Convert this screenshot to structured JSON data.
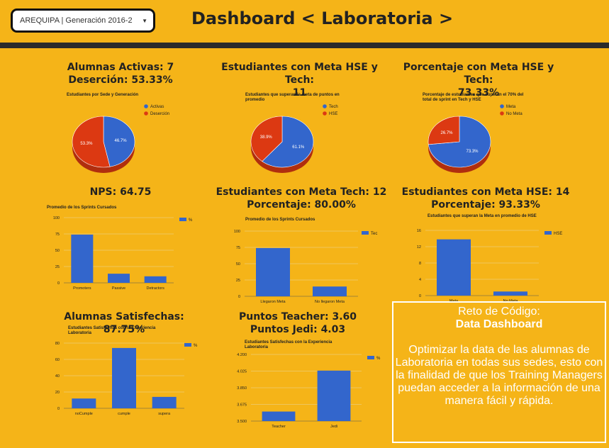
{
  "header": {
    "select_value": "AREQUIPA | Generación 2016-2",
    "title": "Dashboard < Laboratoria >"
  },
  "panels": {
    "p1": {
      "title1": "Alumnas Activas: 7",
      "title2": "Deserción: 53.33%",
      "subtitle": "Estudiantes por Sede y Generación",
      "legend": [
        "Activas",
        "Deserción"
      ],
      "labels": [
        "46.7%",
        "53.3%"
      ]
    },
    "p2": {
      "title1": "Estudiantes con Meta HSE y Tech:",
      "title2": "11",
      "subtitle": "Estudiantes que superan la meta de puntos en promedio",
      "legend": [
        "Tech",
        "HSE"
      ],
      "labels": [
        "61.1%",
        "38.9%"
      ]
    },
    "p3": {
      "title1": "Porcentaje con Meta HSE y Tech:",
      "title2": "73.33%",
      "subtitle": "Porcentaje de estudiantes que superan el 70% del total de sprint en Tech y HSE",
      "legend": [
        "Meta",
        "No Meta"
      ],
      "labels": [
        "73.3%",
        "26.7%"
      ]
    },
    "p4": {
      "title1": "NPS: 64.75",
      "subtitle": "Promedio de los Sprints Cursados",
      "legend": "%"
    },
    "p5": {
      "title1": "Estudiantes con Meta Tech: 12",
      "title2": "Porcentaje: 80.00%",
      "subtitle": "Promedio de los Sprints Cursados",
      "legend": "Tec"
    },
    "p6": {
      "title1": "Estudiantes con Meta HSE: 14",
      "title2": "Porcentaje: 93.33%",
      "subtitle": "Estudiantes que superan la Meta en promedio de HSE",
      "legend": "HSE"
    },
    "p7": {
      "title1": "Alumnas Satisfechas: 87.75%",
      "subtitle": "Estudiantes Satisfechas con la Experiencia Laboratoria",
      "legend": "%"
    },
    "p8": {
      "title1": "Puntos Teacher: 3.60",
      "title2": "Puntos Jedi: 4.03",
      "subtitle": "Estudiantes Satisfechas con la Experiencia Laboratoria",
      "legend": "%"
    }
  },
  "reto": {
    "line1": "Reto de Código:",
    "line2": "Data Dashboard",
    "body": "Optimizar la data de las alumnas de Laboratoria en todas sus sedes, esto con la finalidad de que los Training Managers puedan acceder a la información de una manera fácil y rápida."
  },
  "colors": {
    "blue": "#3366cc",
    "red": "#dc3912",
    "bg": "#f5b418"
  },
  "chart_data": [
    {
      "type": "pie",
      "labels": [
        "Activas",
        "Deserción"
      ],
      "values": [
        46.7,
        53.3
      ],
      "title": "Estudiantes por Sede y Generación"
    },
    {
      "type": "pie",
      "labels": [
        "Tech",
        "HSE"
      ],
      "values": [
        61.1,
        38.9
      ],
      "title": "Estudiantes que superan la meta de puntos en promedio"
    },
    {
      "type": "pie",
      "labels": [
        "Meta",
        "No Meta"
      ],
      "values": [
        73.3,
        26.7
      ],
      "title": "Porcentaje de estudiantes que superan el 70% del total de sprint en Tech y HSE"
    },
    {
      "type": "bar",
      "categories": [
        "Promoters",
        "Passive",
        "Detractors"
      ],
      "series": [
        {
          "name": "%",
          "values": [
            74,
            14,
            10
          ]
        }
      ],
      "yticks": [
        "0",
        "25",
        "50",
        "75",
        "100"
      ],
      "ylim": [
        0,
        100
      ],
      "title": "Promedio de los Sprints Cursados"
    },
    {
      "type": "bar",
      "categories": [
        "Llegaron Meta",
        "No llegaron Meta"
      ],
      "series": [
        {
          "name": "Tec",
          "values": [
            74,
            15
          ]
        }
      ],
      "yticks": [
        "0",
        "25",
        "50",
        "75",
        "100"
      ],
      "ylim": [
        0,
        100
      ],
      "title": "Promedio de los Sprints Cursados"
    },
    {
      "type": "bar",
      "categories": [
        "Meta",
        "No Meta"
      ],
      "series": [
        {
          "name": "HSE",
          "values": [
            13.8,
            1
          ]
        }
      ],
      "yticks": [
        "0",
        "4",
        "8",
        "12",
        "16"
      ],
      "ylim": [
        0,
        16
      ],
      "title": "Estudiantes que superan la Meta en promedio de HSE"
    },
    {
      "type": "bar",
      "categories": [
        "noCumple",
        "cumple",
        "supera"
      ],
      "series": [
        {
          "name": "%",
          "values": [
            12,
            74,
            14
          ]
        }
      ],
      "yticks": [
        "0",
        "20",
        "40",
        "60",
        "80"
      ],
      "ylim": [
        0,
        80
      ],
      "title": "Estudiantes Satisfechas con la Experiencia Laboratoria"
    },
    {
      "type": "bar",
      "categories": [
        "Teacher",
        "Jedi"
      ],
      "series": [
        {
          "name": "%",
          "values": [
            3.6,
            4.03
          ]
        }
      ],
      "yticks": [
        "3.500",
        "3.675",
        "3.850",
        "4.025",
        "4.200"
      ],
      "ylim": [
        3.5,
        4.2
      ],
      "title": "Estudiantes Satisfechas con la Experiencia Laboratoria"
    }
  ]
}
